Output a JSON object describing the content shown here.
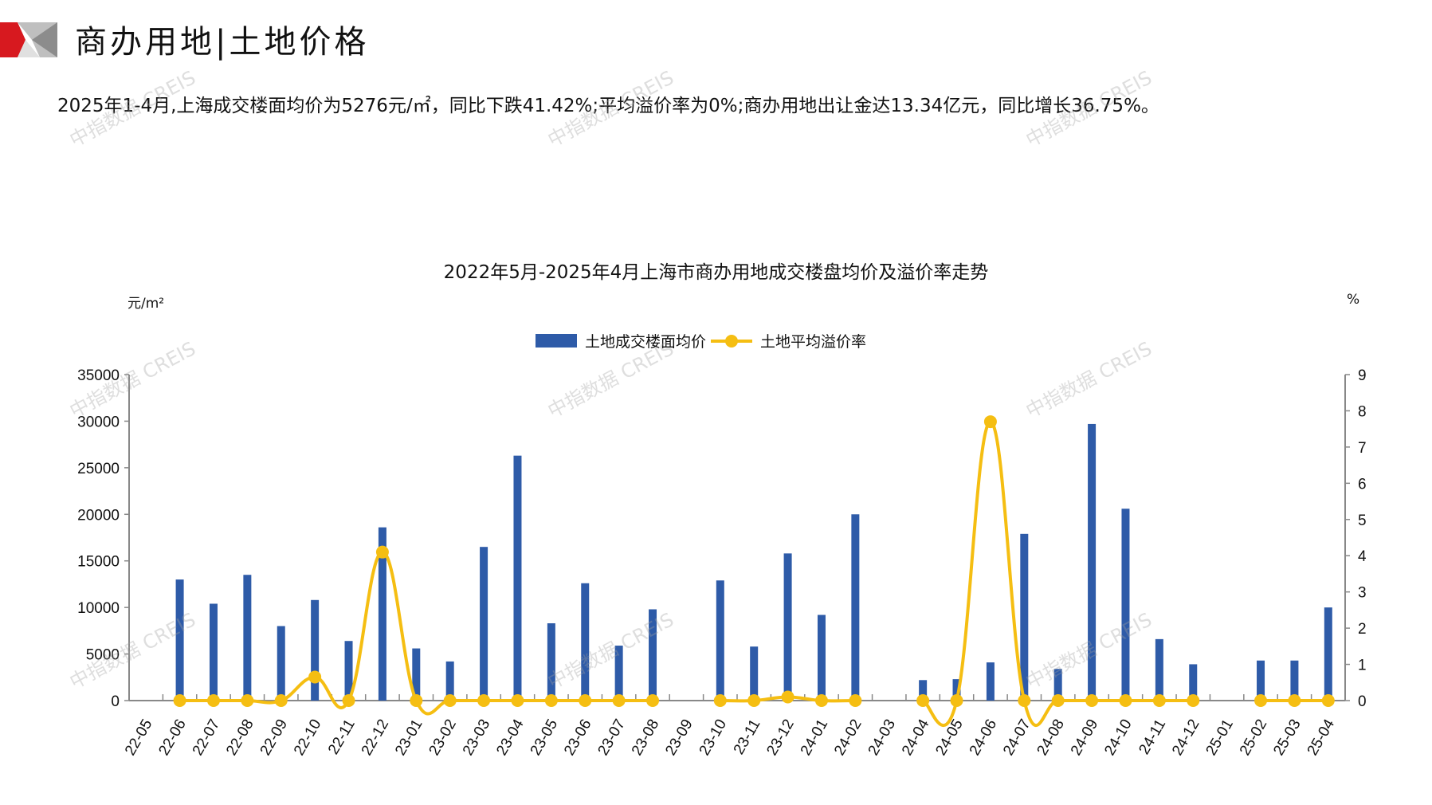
{
  "header": {
    "title": "商办用地|土地价格"
  },
  "summary": "2025年1-4月,上海成交楼面均价为5276元/㎡，同比下跌41.42%;平均溢价率为0%;商办用地出让金达13.34亿元，同比增长36.75%。",
  "watermark": "中指数据 CREIS",
  "colors": {
    "bar": "#2E5BA8",
    "line": "#F5BE12",
    "logo_red": "#D7191F",
    "logo_gray": "#BFBFBF"
  },
  "chart_data": {
    "type": "bar+line",
    "title": "2022年5月-2025年4月上海市商办用地成交楼盘均价及溢价率走势",
    "y_left_unit": "元/m²",
    "y_right_unit": "%",
    "y_left_lim": [
      0,
      35000
    ],
    "y_left_ticks": [
      "0",
      "5000",
      "10000",
      "15000",
      "20000",
      "25000",
      "30000",
      "35000"
    ],
    "y_right_lim": [
      0,
      9
    ],
    "y_right_ticks": [
      "0",
      "1",
      "2",
      "3",
      "4",
      "5",
      "6",
      "7",
      "8",
      "9"
    ],
    "legend_position": "top",
    "grid": false,
    "categories": [
      "22-05",
      "22-06",
      "22-07",
      "22-08",
      "22-09",
      "22-10",
      "22-11",
      "22-12",
      "23-01",
      "23-02",
      "23-03",
      "23-04",
      "23-05",
      "23-06",
      "23-07",
      "23-08",
      "23-09",
      "23-10",
      "23-11",
      "23-12",
      "24-01",
      "24-02",
      "24-03",
      "24-04",
      "24-05",
      "24-06",
      "24-07",
      "24-08",
      "24-09",
      "24-10",
      "24-11",
      "24-12",
      "25-01",
      "25-02",
      "25-03",
      "25-04"
    ],
    "series": [
      {
        "name": "土地成交楼面均价",
        "type": "bar",
        "axis": "left",
        "values": [
          null,
          13000,
          10400,
          13500,
          8000,
          10800,
          6400,
          18600,
          5600,
          4200,
          16500,
          26300,
          8300,
          12600,
          5900,
          9800,
          null,
          12900,
          5800,
          15800,
          9200,
          20000,
          null,
          2200,
          2300,
          4100,
          17900,
          3400,
          29700,
          20600,
          6600,
          3900,
          null,
          4300,
          4300,
          10000
        ]
      },
      {
        "name": "土地平均溢价率",
        "type": "line",
        "axis": "right",
        "values": [
          null,
          0,
          0,
          0,
          0,
          0.65,
          0,
          4.1,
          0,
          0,
          0,
          0,
          0,
          0,
          0,
          0,
          null,
          0,
          0,
          0.1,
          0,
          0,
          null,
          0,
          0,
          7.7,
          0,
          0,
          0,
          0,
          0,
          0,
          null,
          0,
          0,
          0
        ]
      }
    ]
  }
}
